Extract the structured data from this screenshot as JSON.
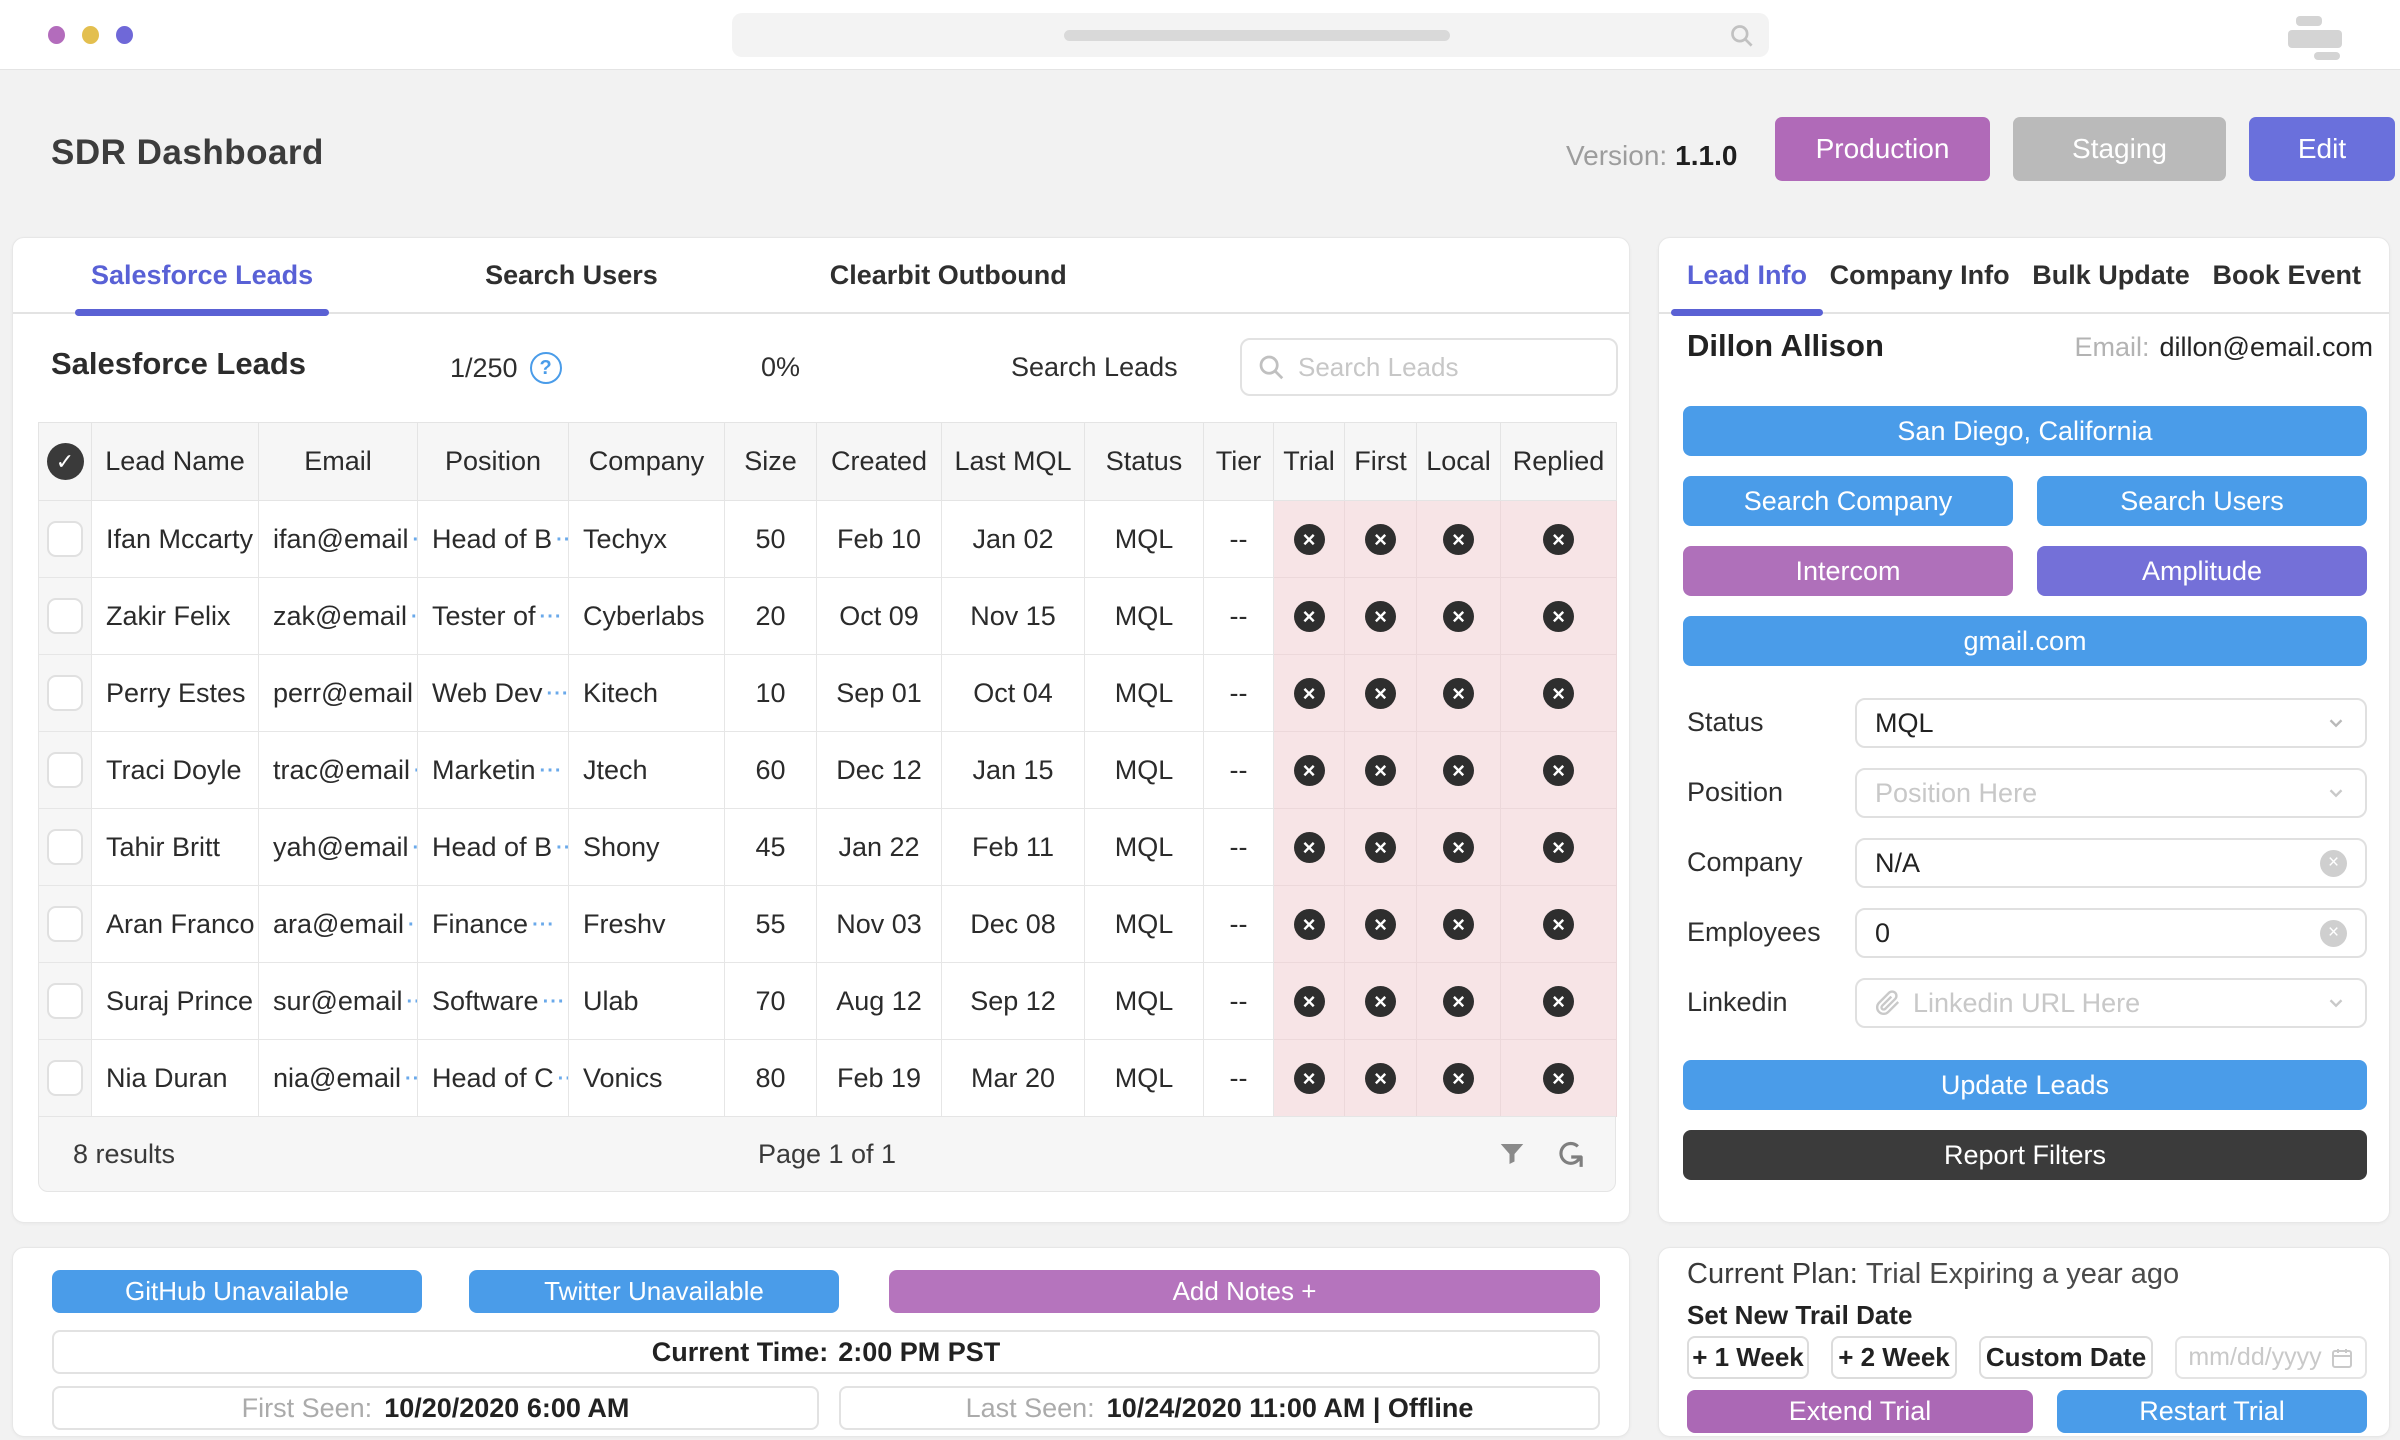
{
  "colors": {
    "blue": "#4a9ce9",
    "purple": "#b06ab8",
    "indigo": "#6a70dc",
    "tab_active": "#5961d6",
    "dark_button": "#3b3b3b",
    "pink_cell": "#f7e4e6",
    "staging_gray": "#bababa"
  },
  "header": {
    "title": "SDR Dashboard",
    "version_label": "Version:",
    "version": "1.1.0",
    "production_button": "Production",
    "staging_button": "Staging",
    "edit_button": "Edit"
  },
  "leads_panel": {
    "tabs": [
      "Salesforce Leads",
      "Search Users",
      "Clearbit Outbound"
    ],
    "active_tab": "Salesforce Leads",
    "title": "Salesforce Leads",
    "quota": "1/250",
    "percent": "0%",
    "search_label": "Search Leads",
    "search_placeholder": "Search Leads",
    "columns": [
      "Lead Name",
      "Email",
      "Position",
      "Company",
      "Size",
      "Created",
      "Last MQL",
      "Status",
      "Tier",
      "Trial",
      "First",
      "Local",
      "Replied"
    ],
    "rows": [
      {
        "name": "Ifan Mccarty",
        "email": "ifan@email",
        "position": "Head of B",
        "company": "Techyx",
        "size": "50",
        "created": "Feb 10",
        "last_mql": "Jan 02",
        "status": "MQL",
        "tier": "--"
      },
      {
        "name": "Zakir Felix",
        "email": "zak@email",
        "position": "Tester of",
        "company": "Cyberlabs",
        "size": "20",
        "created": "Oct 09",
        "last_mql": "Nov 15",
        "status": "MQL",
        "tier": "--"
      },
      {
        "name": "Perry Estes",
        "email": "perr@email",
        "position": "Web Dev",
        "company": "Kitech",
        "size": "10",
        "created": "Sep 01",
        "last_mql": "Oct 04",
        "status": "MQL",
        "tier": "--"
      },
      {
        "name": "Traci Doyle",
        "email": "trac@email",
        "position": "Marketin",
        "company": "Jtech",
        "size": "60",
        "created": "Dec 12",
        "last_mql": "Jan 15",
        "status": "MQL",
        "tier": "--"
      },
      {
        "name": "Tahir Britt",
        "email": "yah@email",
        "position": "Head of B",
        "company": "Shony",
        "size": "45",
        "created": "Jan 22",
        "last_mql": "Feb 11",
        "status": "MQL",
        "tier": "--"
      },
      {
        "name": "Aran Franco",
        "email": "ara@email",
        "position": "Finance",
        "company": "Freshv",
        "size": "55",
        "created": "Nov 03",
        "last_mql": "Dec 08",
        "status": "MQL",
        "tier": "--"
      },
      {
        "name": "Suraj Prince",
        "email": "sur@email",
        "position": "Software",
        "company": "Ulab",
        "size": "70",
        "created": "Aug 12",
        "last_mql": "Sep 12",
        "status": "MQL",
        "tier": "--"
      },
      {
        "name": "Nia Duran",
        "email": "nia@email",
        "position": "Head of C",
        "company": "Vonics",
        "size": "80",
        "created": "Feb 19",
        "last_mql": "Mar 20",
        "status": "MQL",
        "tier": "--"
      }
    ],
    "footer": {
      "results": "8 results",
      "page": "Page 1 of 1"
    }
  },
  "lead_panel": {
    "tabs": [
      "Lead Info",
      "Company Info",
      "Bulk Update",
      "Book Event"
    ],
    "active_tab": "Lead Info",
    "name": "Dillon Allison",
    "email_label": "Email:",
    "email": "dillon@email.com",
    "location_button": "San Diego, California",
    "search_company_button": "Search Company",
    "search_users_button": "Search Users",
    "intercom_button": "Intercom",
    "amplitude_button": "Amplitude",
    "gmail_button": "gmail.com",
    "fields": {
      "status_label": "Status",
      "status_value": "MQL",
      "position_label": "Position",
      "position_placeholder": "Position Here",
      "company_label": "Company",
      "company_value": "N/A",
      "employees_label": "Employees",
      "employees_value": "0",
      "linkedin_label": "Linkedin",
      "linkedin_placeholder": "Linkedin URL Here"
    },
    "update_button": "Update Leads",
    "report_button": "Report Filters"
  },
  "bottom_left": {
    "github_button": "GitHub Unavailable",
    "twitter_button": "Twitter Unavailable",
    "notes_button": "Add Notes +",
    "time_label": "Current Time:",
    "time_value": "2:00 PM PST",
    "first_seen_label": "First Seen:",
    "first_seen_value": "10/20/2020 6:00 AM",
    "last_seen_label": "Last Seen:",
    "last_seen_value": "10/24/2020 11:00 AM | Offline"
  },
  "bottom_right": {
    "plan_label": "Current Plan:",
    "plan_value": "Trial Expiring a year ago",
    "set_date_label": "Set New Trail Date",
    "week1_button": "+ 1 Week",
    "week2_button": "+ 2 Week",
    "custom_button": "Custom Date",
    "date_placeholder": "mm/dd/yyyy",
    "extend_button": "Extend Trial",
    "restart_button": "Restart Trial"
  }
}
